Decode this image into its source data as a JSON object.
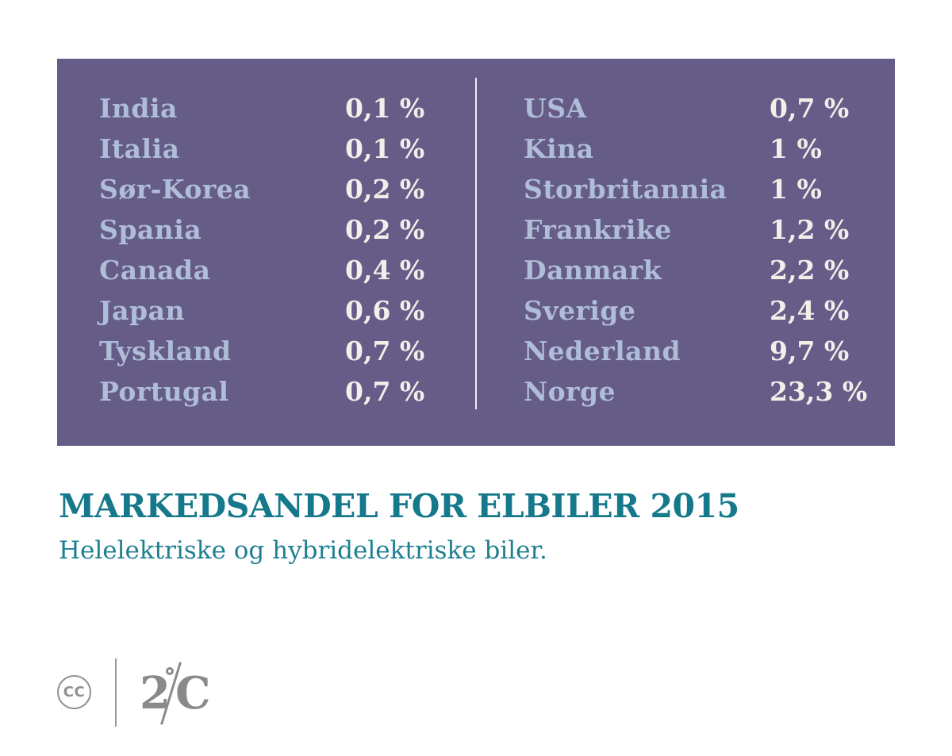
{
  "title": "MARKEDSANDEL FOR ELBILER 2015",
  "subtitle": "Helelektriske og hybridelektriske biler.",
  "table": {
    "left_column": [
      {
        "country": "India",
        "value": "0,1 %"
      },
      {
        "country": "Italia",
        "value": "0,1 %"
      },
      {
        "country": "Sør-Korea",
        "value": "0,2 %"
      },
      {
        "country": "Spania",
        "value": "0,2 %"
      },
      {
        "country": "Canada",
        "value": "0,4 %"
      },
      {
        "country": "Japan",
        "value": "0,6 %"
      },
      {
        "country": "Tyskland",
        "value": "0,7 %"
      },
      {
        "country": "Portugal",
        "value": "0,7 %"
      }
    ],
    "right_column": [
      {
        "country": "USA",
        "value": "0,7 %"
      },
      {
        "country": "Kina",
        "value": "1 %"
      },
      {
        "country": "Storbritannia",
        "value": "1 %"
      },
      {
        "country": "Frankrike",
        "value": "1,2 %"
      },
      {
        "country": "Danmark",
        "value": "2,2 %"
      },
      {
        "country": "Sverige",
        "value": "2,4 %"
      },
      {
        "country": "Nederland",
        "value": "9,7 %"
      },
      {
        "country": "Norge",
        "value": "23,3 %"
      }
    ]
  },
  "footer": {
    "cc_label": "CC",
    "logo_digit": "2",
    "logo_letter": "C"
  },
  "colors": {
    "panel_bg": "#665C88",
    "country_text": "#AFBDD9",
    "value_text": "#F1EFEA",
    "panel_divider": "#EFEDF4",
    "title_teal": "#15788B",
    "subtitle_teal": "#1F8091",
    "logo_gray": "#8A8A8A"
  },
  "chart_data": {
    "type": "table",
    "title": "MARKEDSANDEL FOR ELBILER 2015",
    "subtitle": "Helelektriske og hybridelektriske biler.",
    "unit": "%",
    "decimal_separator": ",",
    "categories": [
      "India",
      "Italia",
      "Sør-Korea",
      "Spania",
      "Canada",
      "Japan",
      "Tyskland",
      "Portugal",
      "USA",
      "Kina",
      "Storbritannia",
      "Frankrike",
      "Danmark",
      "Sverige",
      "Nederland",
      "Norge"
    ],
    "values": [
      0.1,
      0.1,
      0.2,
      0.2,
      0.4,
      0.6,
      0.7,
      0.7,
      0.7,
      1,
      1,
      1.2,
      2.2,
      2.4,
      9.7,
      23.3
    ],
    "layout": "two-column table on purple panel, countries sorted ascending by market share"
  }
}
